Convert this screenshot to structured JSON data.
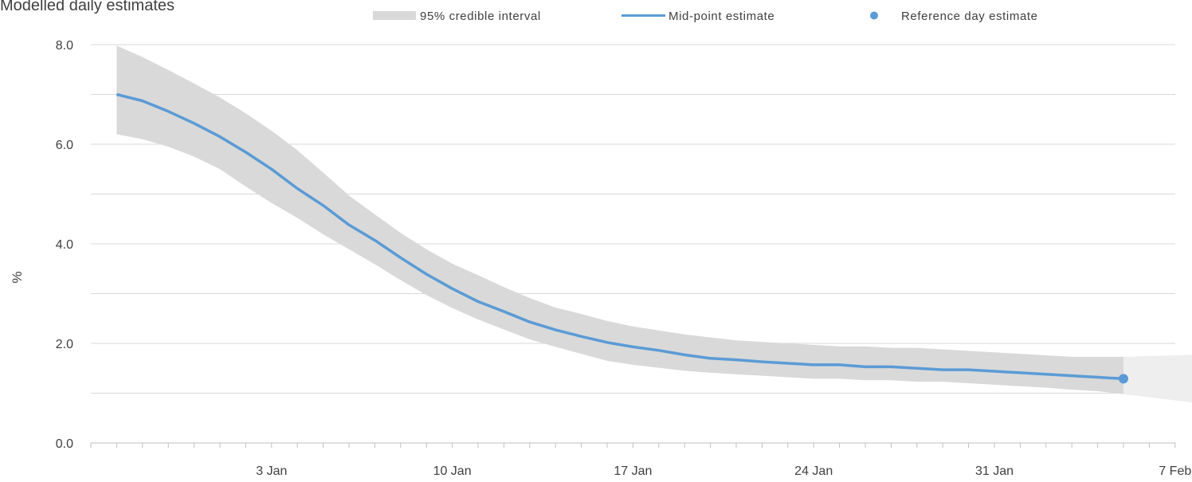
{
  "chart_data": {
    "type": "line",
    "subtitle": "Modelled daily estimates",
    "ylabel": "%",
    "xlabel": "",
    "ylim": [
      0,
      8
    ],
    "y_ticks": [
      "0.0",
      "2.0",
      "4.0",
      "6.0",
      "8.0"
    ],
    "gridlines": true,
    "x_tick_labels": [
      "3 Jan",
      "10 Jan",
      "17 Jan",
      "24 Jan",
      "31 Jan",
      "7 Feb"
    ],
    "legend_position": "top",
    "legend": {
      "interval": "95% credible interval",
      "midpoint": "Mid-point estimate",
      "reference": "Reference day estimate"
    },
    "colors": {
      "interval": "#d9d9d9",
      "interval_extension": "#eeeeee",
      "midpoint": "#5b9bd5",
      "grid": "#d9d9d9",
      "axis": "#bfbfbf",
      "text": "#404040"
    },
    "series": [
      {
        "name": "Mid-point estimate",
        "x": [
          "2021-12-28",
          "2021-12-29",
          "2021-12-30",
          "2021-12-31",
          "2022-01-01",
          "2022-01-02",
          "2022-01-03",
          "2022-01-04",
          "2022-01-05",
          "2022-01-06",
          "2022-01-07",
          "2022-01-08",
          "2022-01-09",
          "2022-01-10",
          "2022-01-11",
          "2022-01-12",
          "2022-01-13",
          "2022-01-14",
          "2022-01-15",
          "2022-01-16",
          "2022-01-17",
          "2022-01-18",
          "2022-01-19",
          "2022-01-20",
          "2022-01-21",
          "2022-01-22",
          "2022-01-23",
          "2022-01-24",
          "2022-01-25",
          "2022-01-26",
          "2022-01-27",
          "2022-01-28",
          "2022-01-29",
          "2022-01-30",
          "2022-01-31",
          "2022-02-01",
          "2022-02-02",
          "2022-02-03",
          "2022-02-04",
          "2022-02-05"
        ],
        "values": [
          7.0,
          6.87,
          6.66,
          6.42,
          6.15,
          5.84,
          5.5,
          5.11,
          4.77,
          4.38,
          4.07,
          3.72,
          3.39,
          3.1,
          2.84,
          2.64,
          2.43,
          2.27,
          2.14,
          2.02,
          1.93,
          1.86,
          1.77,
          1.7,
          1.67,
          1.63,
          1.6,
          1.57,
          1.57,
          1.53,
          1.53,
          1.5,
          1.47,
          1.47,
          1.44,
          1.41,
          1.38,
          1.35,
          1.32,
          1.29
        ],
        "lower": [
          6.2,
          6.1,
          5.95,
          5.75,
          5.5,
          5.15,
          4.82,
          4.52,
          4.19,
          3.89,
          3.59,
          3.27,
          2.97,
          2.71,
          2.48,
          2.28,
          2.08,
          1.93,
          1.79,
          1.65,
          1.57,
          1.51,
          1.45,
          1.41,
          1.38,
          1.35,
          1.32,
          1.29,
          1.29,
          1.26,
          1.26,
          1.23,
          1.23,
          1.2,
          1.17,
          1.14,
          1.11,
          1.07,
          1.04,
          0.98
        ],
        "upper": [
          7.98,
          7.75,
          7.49,
          7.22,
          6.94,
          6.62,
          6.27,
          5.88,
          5.43,
          4.97,
          4.59,
          4.22,
          3.89,
          3.6,
          3.37,
          3.13,
          2.91,
          2.72,
          2.59,
          2.45,
          2.34,
          2.26,
          2.18,
          2.12,
          2.06,
          2.03,
          2.0,
          1.97,
          1.94,
          1.94,
          1.91,
          1.91,
          1.88,
          1.85,
          1.82,
          1.79,
          1.76,
          1.73,
          1.73,
          1.73
        ]
      },
      {
        "name": "Reference day estimate",
        "x": [
          "2022-02-05"
        ],
        "values": [
          1.29
        ]
      }
    ],
    "projected_interval": {
      "x": [
        "2022-02-05",
        "2022-02-09"
      ],
      "lower": [
        0.98,
        0.73
      ],
      "upper": [
        1.73,
        1.79
      ]
    }
  }
}
